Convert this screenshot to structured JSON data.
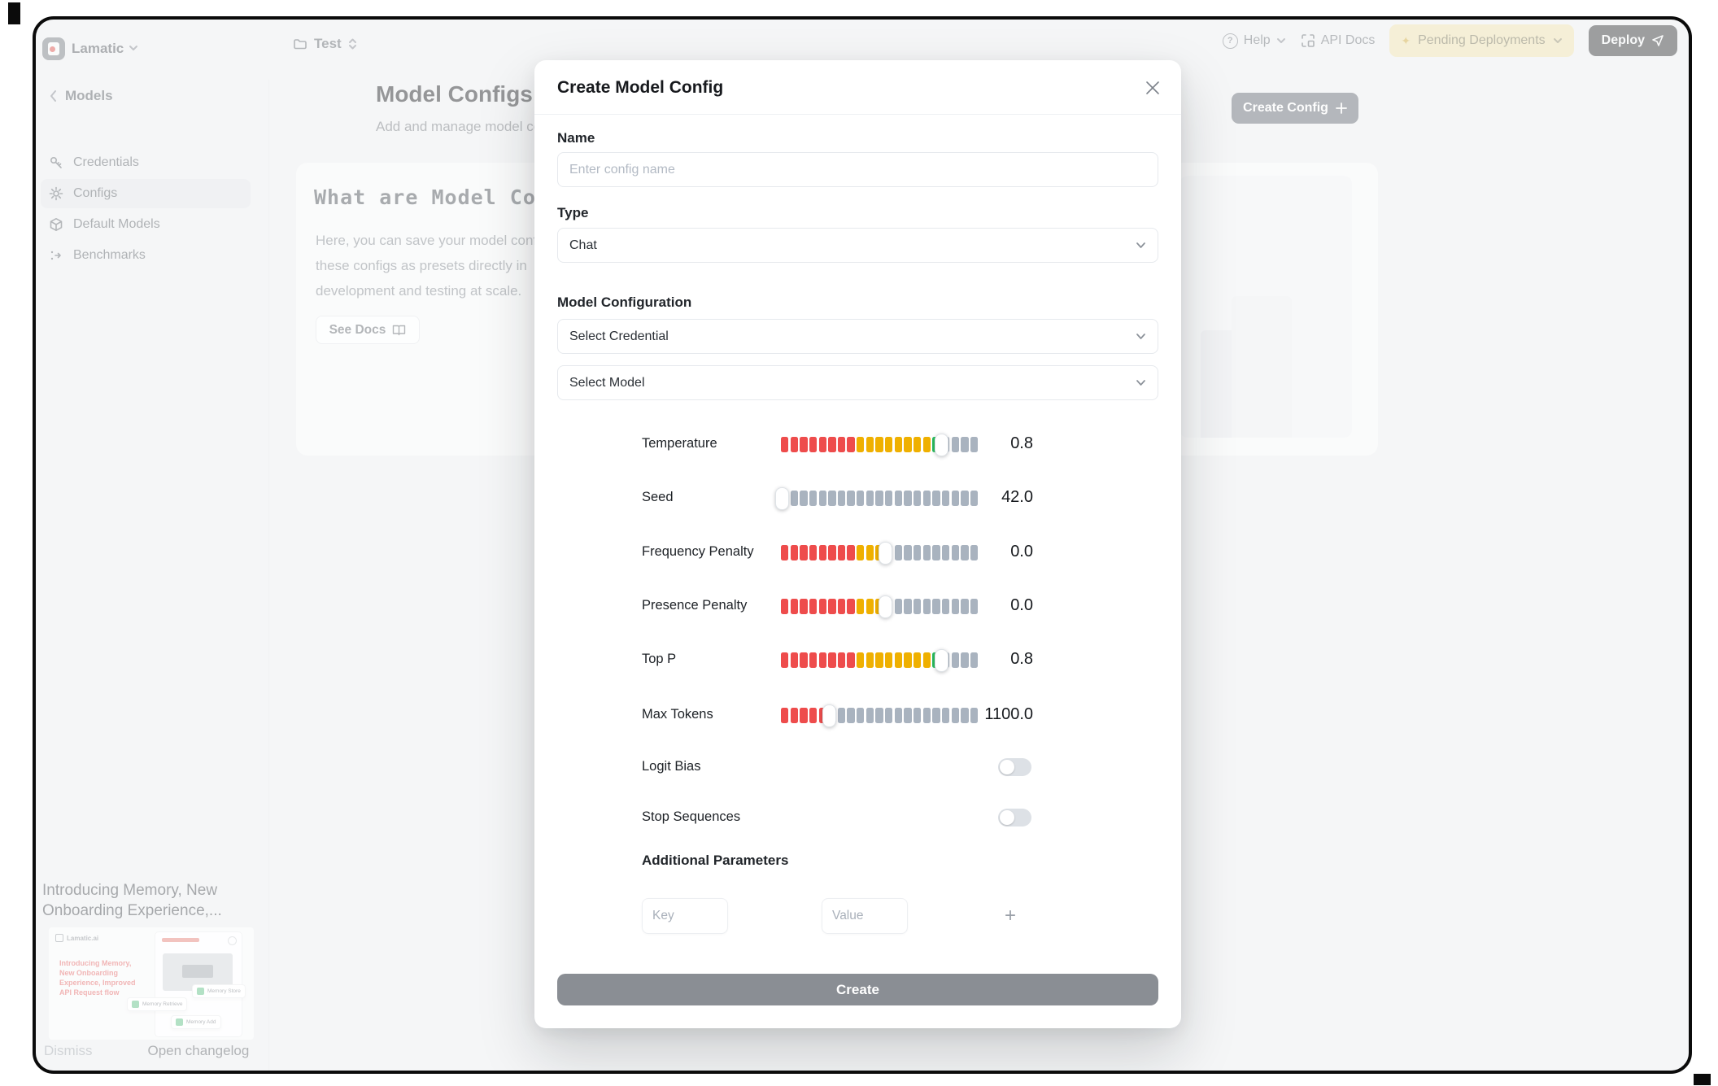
{
  "topbar": {
    "brand": "Lamatic",
    "workspace": "Test",
    "help": "Help",
    "api_docs": "API Docs",
    "pending_deployments": "Pending Deployments",
    "deploy": "Deploy"
  },
  "sidebar": {
    "back": "Models",
    "items": [
      {
        "label": "Credentials",
        "active": false
      },
      {
        "label": "Configs",
        "active": true
      },
      {
        "label": "Default Models",
        "active": false
      },
      {
        "label": "Benchmarks",
        "active": false
      }
    ]
  },
  "main": {
    "title": "Model Configs",
    "subtitle": "Add and manage model configs for your",
    "create_config": "Create Config",
    "card": {
      "heading": "What are Model Conf",
      "lines": [
        "Here, you can save your model conf",
        "these configs as presets directly in",
        "development and testing at scale."
      ],
      "see_docs": "See Docs"
    }
  },
  "changelog": {
    "title_line1": "Introducing Memory, New",
    "title_line2": "Onboarding Experience,...",
    "brand": "Lamatic.ai",
    "red_lines": [
      "Introducing Memory,",
      "New Onboarding",
      "Experience, Improved",
      "API Request flow"
    ],
    "cards": [
      "Memory Retrieve",
      "Memory Store",
      "Memory Add"
    ],
    "dismiss": "Dismiss",
    "open": "Open changelog"
  },
  "modal": {
    "title": "Create Model Config",
    "name_label": "Name",
    "name_placeholder": "Enter config name",
    "type_label": "Type",
    "type_value": "Chat",
    "config_label": "Model Configuration",
    "credential_placeholder": "Select Credential",
    "model_placeholder": "Select Model",
    "sliders": [
      {
        "label": "Temperature",
        "value": "0.8",
        "runs": [
          [
            "red",
            8
          ],
          [
            "amber",
            8
          ],
          [
            "green",
            1
          ],
          [
            "gray",
            4
          ]
        ],
        "handle_at": 17,
        "total": 21
      },
      {
        "label": "Seed",
        "value": "42.0",
        "runs": [
          [
            "gray",
            21
          ]
        ],
        "handle_at": 0,
        "total": 21
      },
      {
        "label": "Frequency Penalty",
        "value": "0.0",
        "runs": [
          [
            "red",
            8
          ],
          [
            "amber",
            3
          ],
          [
            "gray",
            10
          ]
        ],
        "handle_at": 11,
        "total": 21
      },
      {
        "label": "Presence Penalty",
        "value": "0.0",
        "runs": [
          [
            "red",
            8
          ],
          [
            "amber",
            3
          ],
          [
            "gray",
            10
          ]
        ],
        "handle_at": 11,
        "total": 21
      },
      {
        "label": "Top P",
        "value": "0.8",
        "runs": [
          [
            "red",
            8
          ],
          [
            "amber",
            8
          ],
          [
            "green",
            1
          ],
          [
            "gray",
            4
          ]
        ],
        "handle_at": 17,
        "total": 21
      },
      {
        "label": "Max Tokens",
        "value": "1100.0",
        "runs": [
          [
            "red",
            5
          ],
          [
            "gray",
            16
          ]
        ],
        "handle_at": 5,
        "total": 21
      }
    ],
    "toggles": [
      {
        "label": "Logit Bias",
        "on": false
      },
      {
        "label": "Stop Sequences",
        "on": false
      }
    ],
    "additional_label": "Additional Parameters",
    "key_placeholder": "Key",
    "value_placeholder": "Value",
    "plus": "+",
    "create": "Create"
  },
  "colors": {
    "red": "#ee4c4c",
    "amber": "#efb000",
    "green": "#2abd5e",
    "gray": "#a9b3bf"
  }
}
